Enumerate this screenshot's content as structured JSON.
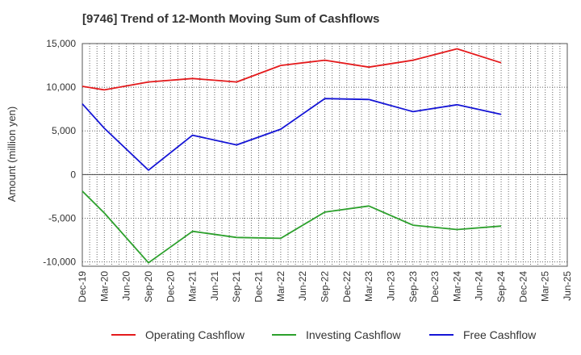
{
  "title": "[9746]  Trend of 12-Month Moving Sum of Cashflows",
  "chart_data": {
    "type": "line",
    "title": "[9746]  Trend of 12-Month Moving Sum of Cashflows",
    "ylabel": "Amount (million yen)",
    "xlabel": "",
    "ylim": [
      -10500,
      15000
    ],
    "yticks": [
      15000,
      10000,
      5000,
      0,
      -5000,
      -10000
    ],
    "ytick_labels": [
      "15,000",
      "10,000",
      "5,000",
      "0",
      "-5,000",
      "-10,000"
    ],
    "categories": [
      "Dec-19",
      "Mar-20",
      "Jun-20",
      "Sep-20",
      "Dec-20",
      "Mar-21",
      "Jun-21",
      "Sep-21",
      "Dec-21",
      "Mar-22",
      "Jun-22",
      "Sep-22",
      "Dec-22",
      "Mar-23",
      "Jun-23",
      "Sep-23",
      "Dec-23",
      "Mar-24",
      "Jun-24",
      "Sep-24",
      "Dec-24",
      "Mar-25"
    ],
    "x_tick_labels": [
      "Dec-19",
      "Mar-20",
      "Jun-20",
      "Sep-20",
      "Dec-20",
      "Mar-21",
      "Jun-21",
      "Sep-21",
      "Dec-21",
      "Mar-22",
      "Jun-22",
      "Sep-22",
      "Dec-22",
      "Mar-23",
      "Jun-23",
      "Sep-23",
      "Dec-23",
      "Mar-24",
      "Jun-24",
      "Sep-24",
      "Dec-24",
      "Mar-25",
      "Jun-25"
    ],
    "grid": true,
    "legend_position": "bottom",
    "series": [
      {
        "name": "Operating Cashflow",
        "color": "#e41a1c",
        "points": [
          {
            "x": "Dec-19",
            "y": 10100
          },
          {
            "x": "Mar-20",
            "y": 9700
          },
          {
            "x": "Sep-20",
            "y": 10600
          },
          {
            "x": "Mar-21",
            "y": 11000
          },
          {
            "x": "Sep-21",
            "y": 10600
          },
          {
            "x": "Mar-22",
            "y": 12500
          },
          {
            "x": "Sep-22",
            "y": 13100
          },
          {
            "x": "Mar-23",
            "y": 12300
          },
          {
            "x": "Sep-23",
            "y": 13100
          },
          {
            "x": "Mar-24",
            "y": 14400
          },
          {
            "x": "Sep-24",
            "y": 12800
          }
        ]
      },
      {
        "name": "Investing Cashflow",
        "color": "#2ca02c",
        "points": [
          {
            "x": "Dec-19",
            "y": -1900
          },
          {
            "x": "Mar-20",
            "y": -4400
          },
          {
            "x": "Sep-20",
            "y": -10100
          },
          {
            "x": "Mar-21",
            "y": -6500
          },
          {
            "x": "Sep-21",
            "y": -7200
          },
          {
            "x": "Mar-22",
            "y": -7300
          },
          {
            "x": "Sep-22",
            "y": -4300
          },
          {
            "x": "Mar-23",
            "y": -3600
          },
          {
            "x": "Sep-23",
            "y": -5800
          },
          {
            "x": "Mar-24",
            "y": -6300
          },
          {
            "x": "Sep-24",
            "y": -5900
          }
        ]
      },
      {
        "name": "Free Cashflow",
        "color": "#1515d6",
        "points": [
          {
            "x": "Dec-19",
            "y": 8100
          },
          {
            "x": "Mar-20",
            "y": 5300
          },
          {
            "x": "Sep-20",
            "y": 500
          },
          {
            "x": "Mar-21",
            "y": 4500
          },
          {
            "x": "Sep-21",
            "y": 3400
          },
          {
            "x": "Mar-22",
            "y": 5200
          },
          {
            "x": "Sep-22",
            "y": 8700
          },
          {
            "x": "Mar-23",
            "y": 8600
          },
          {
            "x": "Sep-23",
            "y": 7200
          },
          {
            "x": "Mar-24",
            "y": 8000
          },
          {
            "x": "Sep-24",
            "y": 6900
          }
        ]
      }
    ]
  }
}
